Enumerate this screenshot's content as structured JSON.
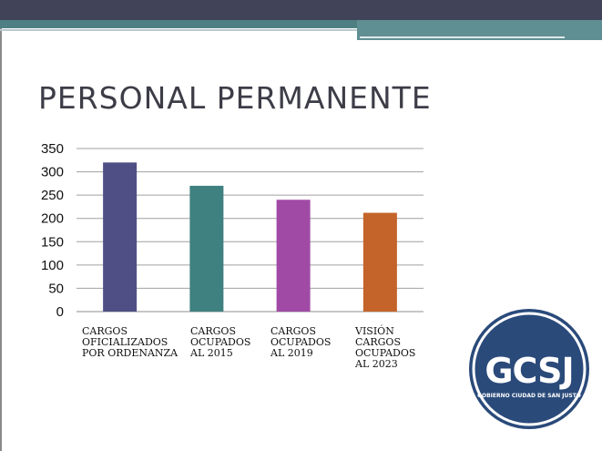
{
  "slide": {
    "title": "PERSONAL PERMANENTE"
  },
  "colors": {
    "top_bar": "#414358",
    "accent": "#4d7f83",
    "title": "#3d3d48",
    "logo_navy": "#2a4a7a"
  },
  "chart_data": {
    "type": "bar",
    "title": "",
    "xlabel": "",
    "ylabel": "",
    "ylim": [
      0,
      350
    ],
    "yticks": [
      0,
      50,
      100,
      150,
      200,
      250,
      300,
      350
    ],
    "grid": true,
    "legend": "none",
    "categories": [
      "CARGOS OFICIALIZADOS POR ORDENANZA",
      "CARGOS OCUPADOS AL 2015",
      "CARGOS OCUPADOS AL 2019",
      "VISIÓN CARGOS OCUPADOS AL 2023"
    ],
    "category_lines": [
      [
        "CARGOS",
        "OFICIALIZADOS",
        "POR ORDENANZA"
      ],
      [
        "CARGOS",
        "OCUPADOS",
        "AL 2015"
      ],
      [
        "CARGOS",
        "OCUPADOS",
        "AL 2019"
      ],
      [
        "VISIÓN",
        "CARGOS",
        "OCUPADOS",
        "AL 2023"
      ]
    ],
    "values": [
      320,
      270,
      240,
      212
    ],
    "bar_colors": [
      "#4f4f85",
      "#3f8080",
      "#a04aa5",
      "#c4642a"
    ]
  },
  "logo": {
    "text": "GCSJ",
    "subtext": "GOBIERNO CIUDAD DE SAN JUSTO"
  }
}
